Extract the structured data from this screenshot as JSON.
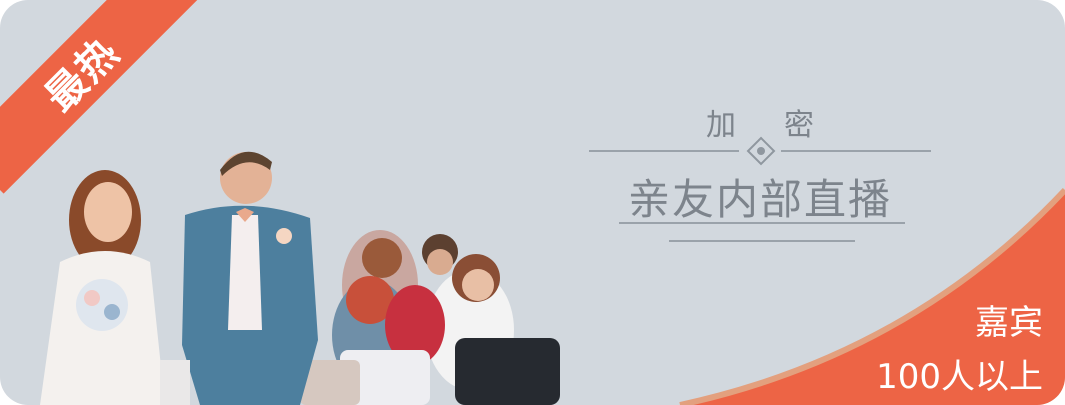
{
  "badge": {
    "label": "最热"
  },
  "title": {
    "subtitle": "加密",
    "main": "亲友内部直播"
  },
  "corner": {
    "line1": "嘉宾",
    "line2": "100人以上"
  },
  "colors": {
    "accent": "#ed6445",
    "background": "#d2d8de",
    "title": "#7d848c"
  }
}
